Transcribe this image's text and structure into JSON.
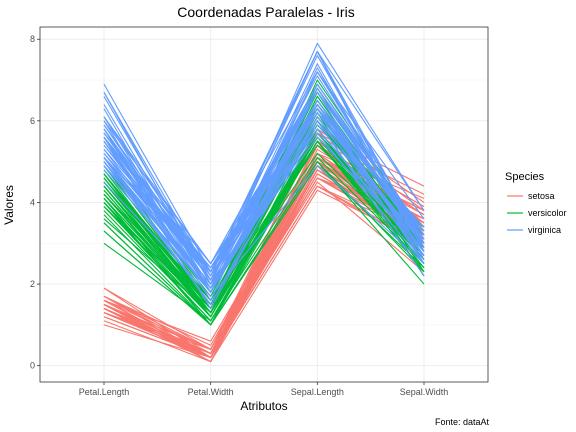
{
  "chart_data": {
    "type": "line",
    "title": "Coordenadas Paralelas - Iris",
    "xlabel": "Atributos",
    "ylabel": "Valores",
    "caption": "Fonte: dataAt",
    "categories": [
      "Petal.Length",
      "Petal.Width",
      "Sepal.Length",
      "Sepal.Width"
    ],
    "ylim": [
      -0.4,
      8.3
    ],
    "yticks": [
      0,
      2,
      4,
      6,
      8
    ],
    "grid": true,
    "legend": {
      "title": "Species",
      "position": "right"
    },
    "series": [
      {
        "name": "setosa",
        "color": "#F8766D",
        "lines": [
          [
            1.4,
            0.2,
            5.1,
            3.5
          ],
          [
            1.4,
            0.2,
            4.9,
            3.0
          ],
          [
            1.3,
            0.2,
            4.7,
            3.2
          ],
          [
            1.5,
            0.2,
            4.6,
            3.1
          ],
          [
            1.4,
            0.2,
            5.0,
            3.6
          ],
          [
            1.7,
            0.4,
            5.4,
            3.9
          ],
          [
            1.4,
            0.3,
            4.6,
            3.4
          ],
          [
            1.5,
            0.2,
            5.0,
            3.4
          ],
          [
            1.4,
            0.2,
            4.4,
            2.9
          ],
          [
            1.5,
            0.1,
            4.9,
            3.1
          ],
          [
            1.5,
            0.2,
            5.4,
            3.7
          ],
          [
            1.6,
            0.2,
            4.8,
            3.4
          ],
          [
            1.4,
            0.1,
            4.8,
            3.0
          ],
          [
            1.1,
            0.1,
            4.3,
            3.0
          ],
          [
            1.2,
            0.2,
            5.8,
            4.0
          ],
          [
            1.5,
            0.4,
            5.7,
            4.4
          ],
          [
            1.3,
            0.4,
            5.4,
            3.9
          ],
          [
            1.4,
            0.3,
            5.1,
            3.5
          ],
          [
            1.7,
            0.3,
            5.7,
            3.8
          ],
          [
            1.5,
            0.3,
            5.1,
            3.8
          ],
          [
            1.7,
            0.2,
            5.4,
            3.4
          ],
          [
            1.5,
            0.4,
            5.1,
            3.7
          ],
          [
            1.0,
            0.2,
            4.6,
            3.6
          ],
          [
            1.7,
            0.5,
            5.1,
            3.3
          ],
          [
            1.9,
            0.2,
            4.8,
            3.4
          ],
          [
            1.6,
            0.2,
            5.0,
            3.0
          ],
          [
            1.6,
            0.4,
            5.0,
            3.4
          ],
          [
            1.5,
            0.2,
            5.2,
            3.5
          ],
          [
            1.4,
            0.2,
            5.2,
            3.4
          ],
          [
            1.6,
            0.2,
            4.7,
            3.2
          ],
          [
            1.6,
            0.2,
            4.8,
            3.1
          ],
          [
            1.5,
            0.4,
            5.4,
            3.4
          ],
          [
            1.5,
            0.1,
            5.2,
            4.1
          ],
          [
            1.4,
            0.2,
            5.5,
            4.2
          ],
          [
            1.5,
            0.2,
            4.9,
            3.1
          ],
          [
            1.2,
            0.2,
            5.0,
            3.2
          ],
          [
            1.3,
            0.2,
            5.5,
            3.5
          ],
          [
            1.4,
            0.1,
            4.9,
            3.6
          ],
          [
            1.3,
            0.2,
            4.4,
            3.0
          ],
          [
            1.5,
            0.2,
            5.1,
            3.4
          ],
          [
            1.3,
            0.3,
            5.0,
            3.5
          ],
          [
            1.3,
            0.3,
            4.5,
            2.3
          ],
          [
            1.3,
            0.2,
            4.4,
            3.2
          ],
          [
            1.6,
            0.6,
            5.0,
            3.5
          ],
          [
            1.9,
            0.4,
            5.1,
            3.8
          ],
          [
            1.4,
            0.3,
            4.8,
            3.0
          ],
          [
            1.6,
            0.2,
            5.1,
            3.8
          ],
          [
            1.4,
            0.2,
            4.6,
            3.2
          ],
          [
            1.5,
            0.2,
            5.3,
            3.7
          ],
          [
            1.4,
            0.2,
            5.0,
            3.3
          ]
        ]
      },
      {
        "name": "versicolor",
        "color": "#00BA38",
        "lines": [
          [
            4.7,
            1.4,
            7.0,
            3.2
          ],
          [
            4.5,
            1.5,
            6.4,
            3.2
          ],
          [
            4.9,
            1.5,
            6.9,
            3.1
          ],
          [
            4.0,
            1.3,
            5.5,
            2.3
          ],
          [
            4.6,
            1.5,
            6.5,
            2.8
          ],
          [
            4.5,
            1.3,
            5.7,
            2.8
          ],
          [
            4.7,
            1.6,
            6.3,
            3.3
          ],
          [
            3.3,
            1.0,
            4.9,
            2.4
          ],
          [
            4.6,
            1.3,
            6.6,
            2.9
          ],
          [
            3.9,
            1.4,
            5.2,
            2.7
          ],
          [
            3.5,
            1.0,
            5.0,
            2.0
          ],
          [
            4.2,
            1.5,
            5.9,
            3.0
          ],
          [
            4.0,
            1.0,
            6.0,
            2.2
          ],
          [
            4.7,
            1.4,
            6.1,
            2.9
          ],
          [
            3.6,
            1.3,
            5.6,
            2.9
          ],
          [
            4.4,
            1.4,
            6.7,
            3.1
          ],
          [
            4.5,
            1.5,
            5.6,
            3.0
          ],
          [
            4.1,
            1.0,
            5.8,
            2.7
          ],
          [
            4.5,
            1.5,
            6.2,
            2.2
          ],
          [
            3.9,
            1.1,
            5.6,
            2.5
          ],
          [
            4.8,
            1.8,
            5.9,
            3.2
          ],
          [
            4.0,
            1.3,
            6.1,
            2.8
          ],
          [
            4.9,
            1.5,
            6.3,
            2.5
          ],
          [
            4.7,
            1.2,
            6.1,
            2.8
          ],
          [
            4.3,
            1.3,
            6.4,
            2.9
          ],
          [
            4.4,
            1.4,
            6.6,
            3.0
          ],
          [
            4.8,
            1.4,
            6.8,
            2.8
          ],
          [
            5.0,
            1.7,
            6.7,
            3.0
          ],
          [
            4.5,
            1.5,
            6.0,
            2.9
          ],
          [
            3.5,
            1.0,
            5.7,
            2.6
          ],
          [
            3.8,
            1.1,
            5.5,
            2.4
          ],
          [
            3.7,
            1.0,
            5.5,
            2.4
          ],
          [
            3.9,
            1.2,
            5.8,
            2.7
          ],
          [
            5.1,
            1.6,
            6.0,
            2.7
          ],
          [
            4.5,
            1.5,
            5.4,
            3.0
          ],
          [
            4.5,
            1.6,
            6.0,
            3.4
          ],
          [
            4.7,
            1.5,
            6.7,
            3.1
          ],
          [
            4.4,
            1.3,
            6.3,
            2.3
          ],
          [
            4.1,
            1.3,
            5.6,
            3.0
          ],
          [
            4.0,
            1.3,
            5.5,
            2.5
          ],
          [
            4.4,
            1.2,
            5.5,
            2.6
          ],
          [
            4.6,
            1.4,
            6.1,
            3.0
          ],
          [
            4.0,
            1.2,
            5.8,
            2.6
          ],
          [
            3.3,
            1.0,
            5.0,
            2.3
          ],
          [
            4.2,
            1.3,
            5.6,
            2.7
          ],
          [
            4.2,
            1.2,
            5.7,
            3.0
          ],
          [
            4.2,
            1.3,
            5.7,
            2.9
          ],
          [
            4.3,
            1.3,
            6.2,
            2.9
          ],
          [
            3.0,
            1.1,
            5.1,
            2.5
          ],
          [
            4.1,
            1.3,
            5.7,
            2.8
          ]
        ]
      },
      {
        "name": "virginica",
        "color": "#619CFF",
        "lines": [
          [
            6.0,
            2.5,
            6.3,
            3.3
          ],
          [
            5.1,
            1.9,
            5.8,
            2.7
          ],
          [
            5.9,
            2.1,
            7.1,
            3.0
          ],
          [
            5.6,
            1.8,
            6.3,
            2.9
          ],
          [
            5.8,
            2.2,
            6.5,
            3.0
          ],
          [
            6.6,
            2.1,
            7.6,
            3.0
          ],
          [
            4.5,
            1.7,
            4.9,
            2.5
          ],
          [
            6.3,
            1.8,
            7.3,
            2.9
          ],
          [
            5.8,
            1.8,
            6.7,
            2.5
          ],
          [
            6.1,
            2.5,
            7.2,
            3.6
          ],
          [
            5.1,
            2.0,
            6.5,
            3.2
          ],
          [
            5.3,
            1.9,
            6.4,
            2.7
          ],
          [
            5.5,
            2.1,
            6.8,
            3.0
          ],
          [
            5.0,
            2.0,
            5.7,
            2.5
          ],
          [
            5.1,
            2.4,
            5.8,
            2.8
          ],
          [
            5.3,
            2.3,
            6.4,
            3.2
          ],
          [
            5.5,
            1.8,
            6.5,
            3.0
          ],
          [
            6.7,
            2.2,
            7.7,
            3.8
          ],
          [
            6.9,
            2.3,
            7.7,
            2.6
          ],
          [
            5.0,
            1.5,
            6.0,
            2.2
          ],
          [
            5.7,
            2.3,
            6.9,
            3.2
          ],
          [
            4.9,
            2.0,
            5.6,
            2.8
          ],
          [
            6.7,
            2.0,
            7.7,
            2.8
          ],
          [
            4.9,
            1.8,
            6.3,
            2.7
          ],
          [
            5.7,
            2.1,
            6.7,
            3.3
          ],
          [
            6.0,
            1.8,
            7.2,
            3.2
          ],
          [
            4.8,
            1.8,
            6.2,
            2.8
          ],
          [
            4.9,
            1.8,
            6.1,
            3.0
          ],
          [
            5.6,
            2.1,
            6.4,
            2.8
          ],
          [
            5.8,
            1.6,
            7.2,
            3.0
          ],
          [
            6.1,
            1.9,
            7.4,
            2.8
          ],
          [
            6.4,
            2.0,
            7.9,
            3.8
          ],
          [
            5.6,
            2.2,
            6.4,
            2.8
          ],
          [
            5.1,
            1.5,
            6.3,
            2.8
          ],
          [
            5.6,
            1.4,
            6.1,
            2.6
          ],
          [
            6.1,
            2.3,
            7.7,
            3.0
          ],
          [
            5.6,
            2.4,
            6.3,
            3.4
          ],
          [
            5.5,
            1.8,
            6.4,
            3.1
          ],
          [
            4.8,
            1.8,
            6.0,
            3.0
          ],
          [
            5.4,
            2.1,
            6.9,
            3.1
          ],
          [
            5.6,
            2.4,
            6.7,
            3.1
          ],
          [
            5.1,
            2.3,
            6.9,
            3.1
          ],
          [
            5.1,
            1.9,
            5.8,
            2.7
          ],
          [
            5.9,
            2.3,
            6.8,
            3.2
          ],
          [
            5.7,
            2.5,
            6.7,
            3.3
          ],
          [
            5.2,
            2.3,
            6.7,
            3.0
          ],
          [
            5.0,
            1.9,
            6.3,
            2.5
          ],
          [
            5.2,
            2.0,
            6.5,
            3.0
          ],
          [
            5.4,
            2.3,
            6.2,
            3.4
          ],
          [
            5.1,
            1.8,
            5.9,
            3.0
          ]
        ]
      }
    ]
  }
}
